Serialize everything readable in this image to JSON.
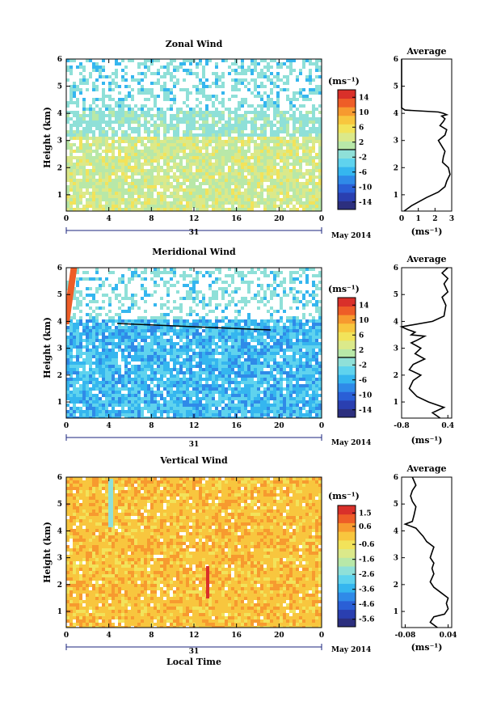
{
  "colors": {
    "scale": [
      "#2c2f7e",
      "#2a3fb0",
      "#2a5fd6",
      "#2f8ae8",
      "#35b6ef",
      "#5fd3ee",
      "#8fe0d8",
      "#b8e8a8",
      "#dbe98a",
      "#f2e35a",
      "#f8c63e",
      "#f79a2f",
      "#ee5d27",
      "#d9302a"
    ],
    "zonal_field": "#a9e2c8",
    "meridional_field": "#8fd0ec",
    "vertical_field": "#f6d264",
    "axis_accent": "#1a237e"
  },
  "chart_data": [
    {
      "type": "heatmap",
      "title": "Zonal Wind",
      "ylabel": "Height (km)",
      "xticks": [
        "0",
        "4",
        "8",
        "12",
        "16",
        "20",
        "0"
      ],
      "yticks": [
        "1",
        "2",
        "3",
        "4",
        "5",
        "6"
      ],
      "ylim": [
        0.4,
        6
      ],
      "date_label": "31",
      "month_label": "May 2014",
      "colorbar": {
        "unit": "(ms⁻¹)",
        "ticks": [
          "14",
          "10",
          "6",
          "2",
          "-2",
          "-6",
          "-10",
          "-14"
        ],
        "range": [
          -16,
          16
        ]
      }
    },
    {
      "type": "line",
      "title": "Average",
      "xticks": [
        "0",
        "1",
        "2",
        "3"
      ],
      "yticks": [
        "1",
        "2",
        "3",
        "4",
        "5",
        "6"
      ],
      "xlabel": "(ms⁻¹)",
      "xlim": [
        0,
        3
      ],
      "ylim": [
        0.4,
        6
      ],
      "x": [
        0.15,
        0.6,
        1.5,
        2.2,
        2.6,
        2.7,
        2.9,
        2.8,
        2.45,
        2.5,
        2.6,
        2.4,
        2.2,
        2.6,
        2.7,
        2.3,
        2.5,
        2.6,
        2.4,
        2.7,
        2.5,
        2.2,
        0.2,
        0.0,
        0.0,
        0.0,
        0.0
      ],
      "y": [
        0.4,
        0.6,
        0.9,
        1.1,
        1.3,
        1.5,
        1.75,
        2.0,
        2.2,
        2.4,
        2.6,
        2.8,
        3.0,
        3.2,
        3.4,
        3.55,
        3.7,
        3.8,
        3.9,
        3.95,
        4.0,
        4.05,
        4.12,
        4.2,
        4.6,
        5.3,
        6.0
      ]
    },
    {
      "type": "heatmap",
      "title": "Meridional Wind",
      "ylabel": "Height (km)",
      "xticks": [
        "0",
        "4",
        "8",
        "12",
        "16",
        "20",
        "0"
      ],
      "yticks": [
        "1",
        "2",
        "3",
        "4",
        "5",
        "6"
      ],
      "ylim": [
        0.4,
        6
      ],
      "date_label": "31",
      "month_label": "May 2014",
      "colorbar": {
        "unit": "(ms⁻¹)",
        "ticks": [
          "14",
          "10",
          "6",
          "2",
          "-2",
          "-6",
          "-10",
          "-14"
        ],
        "range": [
          -16,
          16
        ]
      }
    },
    {
      "type": "line",
      "title": "Average",
      "xticks": [
        "-0.8",
        "0.4"
      ],
      "yticks": [
        "1",
        "2",
        "3",
        "4",
        "5",
        "6"
      ],
      "xlabel": "(ms⁻¹)",
      "xlim": [
        -0.8,
        0.5
      ],
      "ylim": [
        0.4,
        6
      ],
      "x": [
        0.2,
        0.0,
        0.3,
        -0.1,
        -0.4,
        -0.6,
        -0.5,
        -0.3,
        -0.6,
        -0.5,
        -0.2,
        -0.45,
        -0.3,
        -0.55,
        -0.4,
        -0.2,
        -0.55,
        -0.45,
        -0.65,
        -0.8,
        0.0,
        0.3,
        0.35,
        0.25,
        0.4,
        0.3,
        0.4,
        0.25,
        0.4
      ],
      "y": [
        0.4,
        0.6,
        0.8,
        1.0,
        1.2,
        1.5,
        1.8,
        2.0,
        2.2,
        2.4,
        2.6,
        2.8,
        3.0,
        3.2,
        3.3,
        3.45,
        3.5,
        3.6,
        3.7,
        3.8,
        4.0,
        4.2,
        4.6,
        4.9,
        5.1,
        5.4,
        5.6,
        5.8,
        6.0
      ]
    },
    {
      "type": "heatmap",
      "title": "Vertical Wind",
      "ylabel": "Height (km)",
      "xlabel": "Local Time",
      "xticks": [
        "0",
        "4",
        "8",
        "12",
        "16",
        "20",
        "0"
      ],
      "yticks": [
        "1",
        "2",
        "3",
        "4",
        "5",
        "6"
      ],
      "ylim": [
        0.4,
        6
      ],
      "date_label": "31",
      "month_label": "May 2014",
      "colorbar": {
        "unit": "(ms⁻¹)",
        "ticks": [
          "1.5",
          "0.6",
          "-0.6",
          "-1.6",
          "-2.6",
          "-3.6",
          "-4.6",
          "-5.6"
        ],
        "range": [
          -6.1,
          2.0
        ]
      }
    },
    {
      "type": "line",
      "title": "Average",
      "xticks": [
        "-0.08",
        "0.04"
      ],
      "yticks": [
        "1",
        "2",
        "3",
        "4",
        "5",
        "6"
      ],
      "xlabel": "(ms⁻¹)",
      "xlim": [
        -0.09,
        0.05
      ],
      "ylim": [
        0.4,
        6
      ],
      "x": [
        0.01,
        -0.01,
        0.0,
        0.03,
        0.04,
        0.035,
        0.04,
        0.02,
        0.0,
        -0.01,
        0.0,
        -0.005,
        0.0,
        -0.01,
        -0.005,
        0.0,
        -0.02,
        -0.03,
        -0.04,
        -0.05,
        -0.08,
        -0.06,
        -0.055,
        -0.05,
        -0.06,
        -0.065,
        -0.06,
        -0.05,
        -0.055,
        -0.06
      ],
      "y": [
        0.4,
        0.6,
        0.8,
        0.9,
        1.1,
        1.3,
        1.5,
        1.7,
        1.9,
        2.1,
        2.4,
        2.6,
        2.8,
        3.0,
        3.2,
        3.4,
        3.6,
        3.8,
        3.95,
        4.1,
        4.25,
        4.35,
        4.6,
        4.9,
        5.1,
        5.3,
        5.5,
        5.7,
        5.85,
        6.0
      ]
    }
  ]
}
